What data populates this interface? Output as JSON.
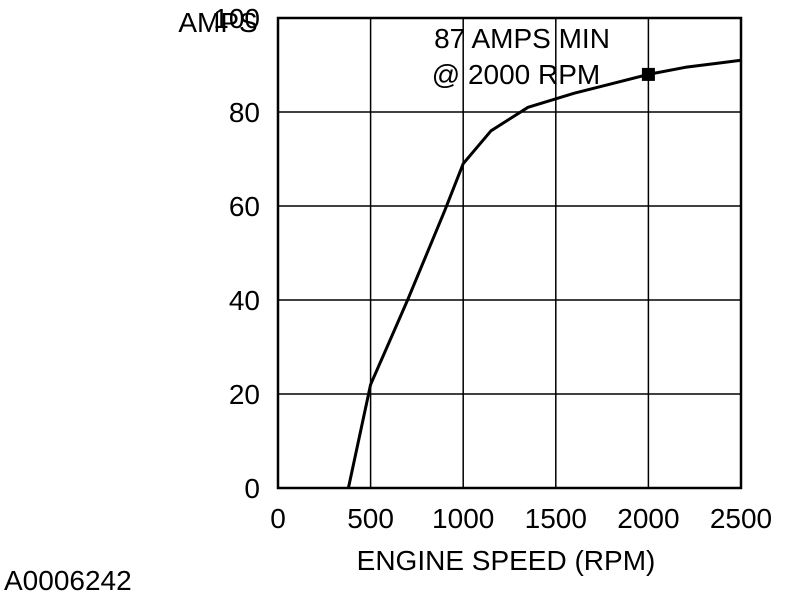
{
  "chart_data": {
    "type": "line",
    "title": "",
    "xlabel": "ENGINE SPEED (RPM)",
    "ylabel": "AMPS",
    "xlim": [
      0,
      2500
    ],
    "ylim": [
      0,
      100
    ],
    "grid": true,
    "x_ticks": [
      0,
      500,
      1000,
      1500,
      2000,
      2500
    ],
    "x_tick_labels": [
      "0",
      "500",
      "1000",
      "1500",
      "2000",
      "2500"
    ],
    "y_ticks": [
      0,
      20,
      40,
      60,
      80,
      100
    ],
    "y_tick_labels": [
      "0",
      "20",
      "40",
      "60",
      "80",
      "100"
    ],
    "series": [
      {
        "x": [
          380,
          500,
          700,
          900,
          1000,
          1150,
          1350,
          1600,
          1800,
          2000,
          2200,
          2400,
          2500
        ],
        "y": [
          0,
          22,
          40,
          59,
          69,
          76,
          81,
          84,
          86,
          88,
          89.5,
          90.5,
          91
        ]
      }
    ],
    "marker": {
      "x": 2000,
      "y": 88,
      "shape": "square"
    },
    "annotation": {
      "line1": "87 AMPS MIN",
      "line2": "@ 2000 RPM"
    }
  },
  "figure_id": "A0006242"
}
